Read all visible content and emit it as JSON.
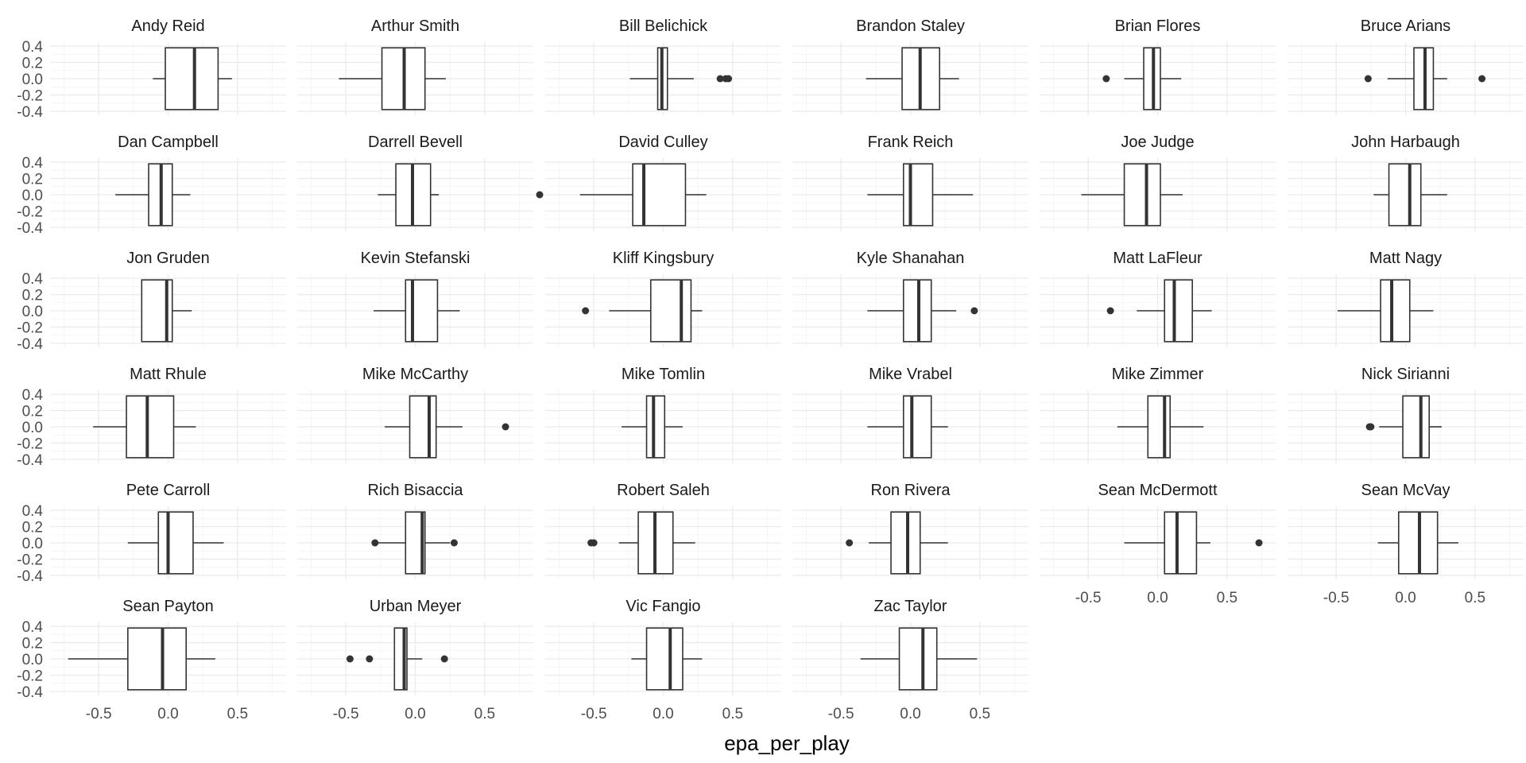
{
  "chart_data": {
    "type": "boxplot",
    "facet_layout": "6 columns, wrapped",
    "xlabel": "epa_per_play",
    "ylabel": "",
    "xlim": [
      -0.85,
      0.85
    ],
    "ylim": [
      -0.45,
      0.45
    ],
    "x_ticks": [
      -0.5,
      0.0,
      0.5
    ],
    "x_tick_labels": [
      "-0.5",
      "0.0",
      "0.5"
    ],
    "y_ticks": [
      0.4,
      0.2,
      0.0,
      -0.2,
      -0.4
    ],
    "y_tick_labels": [
      "0.4",
      "0.2",
      "0.0",
      "-0.2",
      "-0.4"
    ],
    "grid": true,
    "colors": {
      "box": "#333333",
      "grid": "#ebebeb",
      "background": "#ffffff"
    },
    "panels": [
      {
        "name": "Andy Reid",
        "whisker_low": -0.11,
        "q1": -0.02,
        "median": 0.19,
        "q3": 0.36,
        "whisker_high": 0.46,
        "outliers": []
      },
      {
        "name": "Arthur Smith",
        "whisker_low": -0.55,
        "q1": -0.24,
        "median": -0.08,
        "q3": 0.07,
        "whisker_high": 0.22,
        "outliers": []
      },
      {
        "name": "Bill Belichick",
        "whisker_low": -0.24,
        "q1": -0.04,
        "median": -0.01,
        "q3": 0.03,
        "whisker_high": 0.22,
        "outliers": [
          0.41,
          0.45,
          0.47
        ]
      },
      {
        "name": "Brandon Staley",
        "whisker_low": -0.32,
        "q1": -0.06,
        "median": 0.07,
        "q3": 0.21,
        "whisker_high": 0.35,
        "outliers": []
      },
      {
        "name": "Brian Flores",
        "whisker_low": -0.24,
        "q1": -0.1,
        "median": -0.03,
        "q3": 0.02,
        "whisker_high": 0.17,
        "outliers": [
          -0.37
        ]
      },
      {
        "name": "Bruce Arians",
        "whisker_low": -0.13,
        "q1": 0.06,
        "median": 0.14,
        "q3": 0.2,
        "whisker_high": 0.3,
        "outliers": [
          -0.27,
          0.55
        ]
      },
      {
        "name": "Dan Campbell",
        "whisker_low": -0.38,
        "q1": -0.14,
        "median": -0.05,
        "q3": 0.03,
        "whisker_high": 0.16,
        "outliers": []
      },
      {
        "name": "Darrell Bevell",
        "whisker_low": -0.27,
        "q1": -0.14,
        "median": -0.02,
        "q3": 0.11,
        "whisker_high": 0.17,
        "outliers": []
      },
      {
        "name": "David Culley",
        "whisker_low": -0.6,
        "q1": -0.22,
        "median": -0.14,
        "q3": 0.16,
        "whisker_high": 0.31,
        "outliers": [
          -0.89
        ]
      },
      {
        "name": "Frank Reich",
        "whisker_low": -0.31,
        "q1": -0.05,
        "median": 0.0,
        "q3": 0.16,
        "whisker_high": 0.45,
        "outliers": []
      },
      {
        "name": "Joe Judge",
        "whisker_low": -0.55,
        "q1": -0.24,
        "median": -0.08,
        "q3": 0.02,
        "whisker_high": 0.18,
        "outliers": []
      },
      {
        "name": "John Harbaugh",
        "whisker_low": -0.23,
        "q1": -0.12,
        "median": 0.03,
        "q3": 0.11,
        "whisker_high": 0.3,
        "outliers": []
      },
      {
        "name": "Jon Gruden",
        "whisker_low": -0.19,
        "q1": -0.19,
        "median": -0.01,
        "q3": 0.03,
        "whisker_high": 0.17,
        "outliers": []
      },
      {
        "name": "Kevin Stefanski",
        "whisker_low": -0.3,
        "q1": -0.07,
        "median": -0.02,
        "q3": 0.16,
        "whisker_high": 0.32,
        "outliers": []
      },
      {
        "name": "Kliff Kingsbury",
        "whisker_low": -0.39,
        "q1": -0.09,
        "median": 0.13,
        "q3": 0.2,
        "whisker_high": 0.28,
        "outliers": [
          -0.56
        ]
      },
      {
        "name": "Kyle Shanahan",
        "whisker_low": -0.31,
        "q1": -0.05,
        "median": 0.06,
        "q3": 0.15,
        "whisker_high": 0.33,
        "outliers": [
          0.46
        ]
      },
      {
        "name": "Matt LaFleur",
        "whisker_low": -0.15,
        "q1": 0.05,
        "median": 0.12,
        "q3": 0.25,
        "whisker_high": 0.39,
        "outliers": [
          -0.34
        ]
      },
      {
        "name": "Matt Nagy",
        "whisker_low": -0.49,
        "q1": -0.18,
        "median": -0.1,
        "q3": 0.03,
        "whisker_high": 0.2,
        "outliers": []
      },
      {
        "name": "Matt Rhule",
        "whisker_low": -0.54,
        "q1": -0.3,
        "median": -0.15,
        "q3": 0.04,
        "whisker_high": 0.2,
        "outliers": []
      },
      {
        "name": "Mike McCarthy",
        "whisker_low": -0.22,
        "q1": -0.04,
        "median": 0.1,
        "q3": 0.15,
        "whisker_high": 0.34,
        "outliers": [
          0.65
        ]
      },
      {
        "name": "Mike Tomlin",
        "whisker_low": -0.3,
        "q1": -0.12,
        "median": -0.07,
        "q3": 0.01,
        "whisker_high": 0.14,
        "outliers": []
      },
      {
        "name": "Mike Vrabel",
        "whisker_low": -0.31,
        "q1": -0.05,
        "median": 0.01,
        "q3": 0.15,
        "whisker_high": 0.27,
        "outliers": []
      },
      {
        "name": "Mike Zimmer",
        "whisker_low": -0.29,
        "q1": -0.07,
        "median": 0.05,
        "q3": 0.09,
        "whisker_high": 0.33,
        "outliers": []
      },
      {
        "name": "Nick Sirianni",
        "whisker_low": -0.19,
        "q1": -0.02,
        "median": 0.11,
        "q3": 0.17,
        "whisker_high": 0.26,
        "outliers": [
          -0.26,
          -0.25
        ]
      },
      {
        "name": "Pete Carroll",
        "whisker_low": -0.29,
        "q1": -0.07,
        "median": 0.0,
        "q3": 0.18,
        "whisker_high": 0.4,
        "outliers": []
      },
      {
        "name": "Rich Bisaccia",
        "whisker_low": -0.28,
        "q1": -0.07,
        "median": 0.05,
        "q3": 0.07,
        "whisker_high": 0.25,
        "outliers": [
          -0.29,
          0.28
        ]
      },
      {
        "name": "Robert Saleh",
        "whisker_low": -0.32,
        "q1": -0.18,
        "median": -0.06,
        "q3": 0.07,
        "whisker_high": 0.23,
        "outliers": [
          -0.52,
          -0.5
        ]
      },
      {
        "name": "Ron Rivera",
        "whisker_low": -0.3,
        "q1": -0.14,
        "median": -0.02,
        "q3": 0.07,
        "whisker_high": 0.27,
        "outliers": [
          -0.44
        ]
      },
      {
        "name": "Sean McDermott",
        "whisker_low": -0.24,
        "q1": 0.05,
        "median": 0.14,
        "q3": 0.28,
        "whisker_high": 0.38,
        "outliers": [
          0.73
        ]
      },
      {
        "name": "Sean McVay",
        "whisker_low": -0.2,
        "q1": -0.05,
        "median": 0.1,
        "q3": 0.23,
        "whisker_high": 0.38,
        "outliers": []
      },
      {
        "name": "Sean Payton",
        "whisker_low": -0.72,
        "q1": -0.29,
        "median": -0.04,
        "q3": 0.13,
        "whisker_high": 0.34,
        "outliers": []
      },
      {
        "name": "Urban Meyer",
        "whisker_low": -0.15,
        "q1": -0.15,
        "median": -0.08,
        "q3": -0.06,
        "whisker_high": 0.05,
        "outliers": [
          -0.47,
          -0.33,
          0.21
        ]
      },
      {
        "name": "Vic Fangio",
        "whisker_low": -0.23,
        "q1": -0.12,
        "median": 0.05,
        "q3": 0.14,
        "whisker_high": 0.28,
        "outliers": []
      },
      {
        "name": "Zac Taylor",
        "whisker_low": -0.36,
        "q1": -0.08,
        "median": 0.09,
        "q3": 0.19,
        "whisker_high": 0.48,
        "outliers": []
      }
    ]
  }
}
